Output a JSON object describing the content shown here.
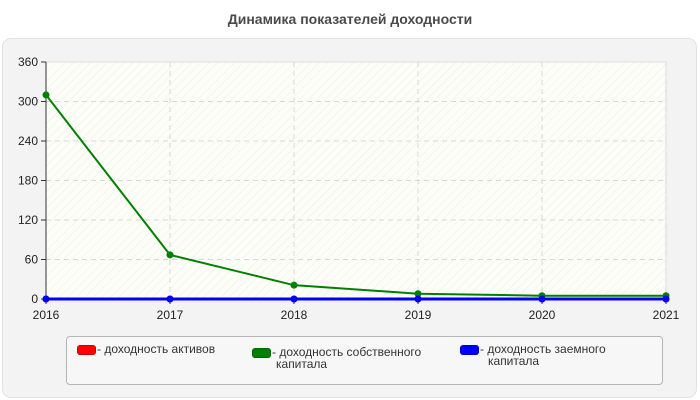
{
  "chart_data": {
    "type": "line",
    "title": "Динамика показателей доходности",
    "xlabel": "",
    "ylabel": "",
    "categories": [
      "2016",
      "2017",
      "2018",
      "2019",
      "2020",
      "2021"
    ],
    "ylim": [
      0,
      360
    ],
    "yticks": [
      "0",
      "60",
      "120",
      "180",
      "240",
      "300",
      "360"
    ],
    "grid": true,
    "legend_position": "bottom",
    "series": [
      {
        "name": "доходность активов",
        "color": "#ff0000",
        "values": [
          0,
          0,
          0,
          0,
          0,
          0
        ]
      },
      {
        "name": "доходность собственного капитала",
        "color": "#008000",
        "values": [
          310,
          67,
          21,
          8,
          5,
          5
        ]
      },
      {
        "name": "доходность заемного капитала",
        "color": "#0000ff",
        "values": [
          0,
          0,
          0,
          0,
          0,
          0
        ]
      }
    ]
  },
  "legend": {
    "items": [
      {
        "line1": "- доходность активов",
        "line2": "",
        "color": "#ff0000"
      },
      {
        "line1": "- доходность собственного",
        "line2": "капитала",
        "color": "#008000"
      },
      {
        "line1": "- доходность заемного",
        "line2": "капитала",
        "color": "#0000ff"
      }
    ]
  }
}
